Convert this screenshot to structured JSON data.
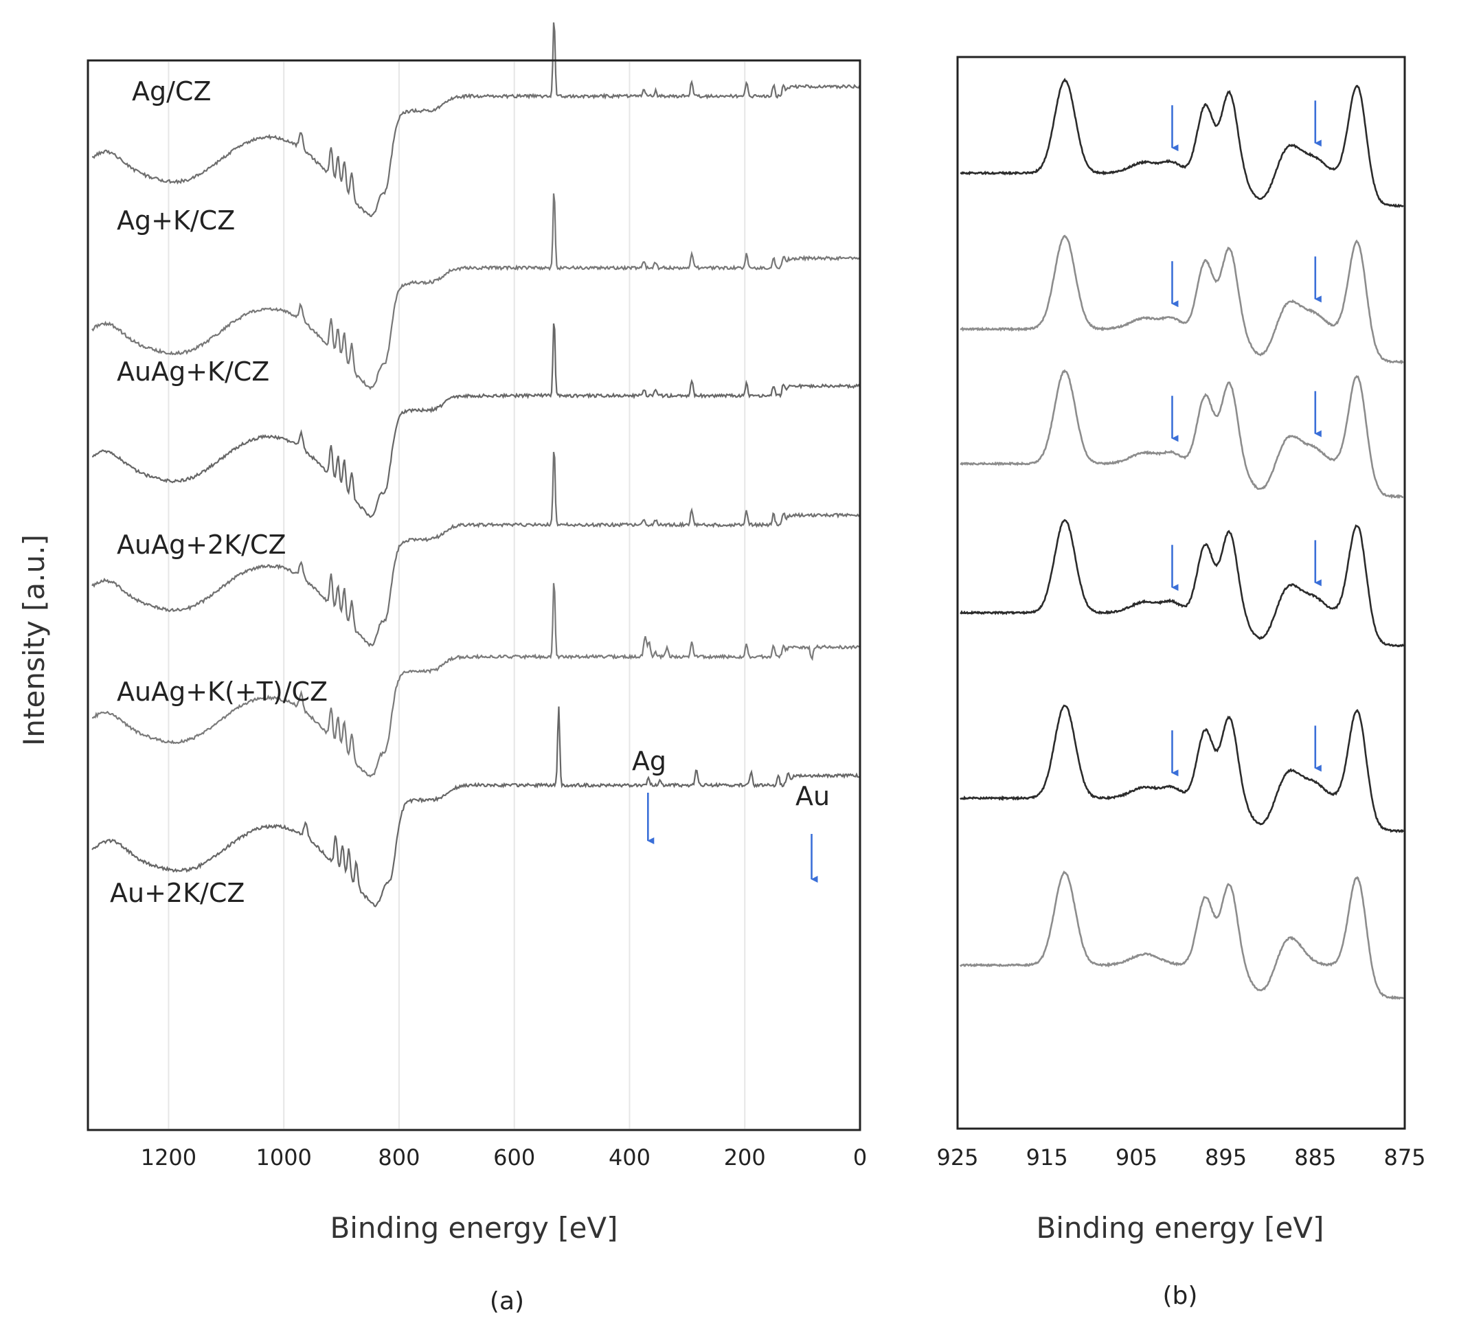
{
  "figure": {
    "ylabel": "Intensity [a.u.]",
    "colors": {
      "arrow": "#3a6fd8",
      "frame": "#222222",
      "grid": "#e6e6e6"
    }
  },
  "chart_data": [
    {
      "panel_label": "(a)",
      "type": "line",
      "title": "",
      "xlabel": "Binding energy [eV]",
      "ylabel": "Intensity [a.u.]",
      "xlim": [
        1340,
        0
      ],
      "x_ticks": [
        1200,
        1000,
        800,
        600,
        400,
        200,
        0
      ],
      "grid": true,
      "series": [
        {
          "name": "Ag/CZ",
          "color": "#6e6e6e"
        },
        {
          "name": "Ag+K/CZ",
          "color": "#777777"
        },
        {
          "name": "AuAg+K/CZ",
          "color": "#666666"
        },
        {
          "name": "AuAg+2K/CZ",
          "color": "#707070"
        },
        {
          "name": "AuAg+K(+T)/CZ",
          "color": "#7a7a7a"
        },
        {
          "name": "Au+2K/CZ",
          "color": "#666666"
        }
      ],
      "annotations": [
        {
          "text": "Ag",
          "x": 368,
          "series": "AuAg+K(+T)/CZ",
          "type": "arrow"
        },
        {
          "text": "Au",
          "x": 84,
          "series": "AuAg+K(+T)/CZ",
          "type": "arrow"
        }
      ]
    },
    {
      "panel_label": "(b)",
      "type": "line",
      "title": "",
      "xlabel": "Binding energy [eV]",
      "ylabel": "",
      "xlim": [
        925,
        875
      ],
      "x_ticks": [
        925,
        915,
        905,
        895,
        885,
        875
      ],
      "grid": false,
      "series": [
        {
          "name": "Ag/CZ",
          "color": "#2b2b2b",
          "arrows": [
            901,
            885
          ]
        },
        {
          "name": "Ag+K/CZ",
          "color": "#8c8c8c",
          "arrows": [
            901,
            885
          ]
        },
        {
          "name": "AuAg+K/CZ",
          "color": "#8c8c8c",
          "arrows": [
            901,
            885
          ]
        },
        {
          "name": "AuAg+2K/CZ",
          "color": "#2b2b2b",
          "arrows": [
            901,
            885
          ]
        },
        {
          "name": "AuAg+K(+T)/CZ",
          "color": "#2b2b2b",
          "arrows": [
            901,
            885
          ]
        },
        {
          "name": "Au+2K/CZ",
          "color": "#8c8c8c",
          "arrows": []
        }
      ]
    }
  ]
}
